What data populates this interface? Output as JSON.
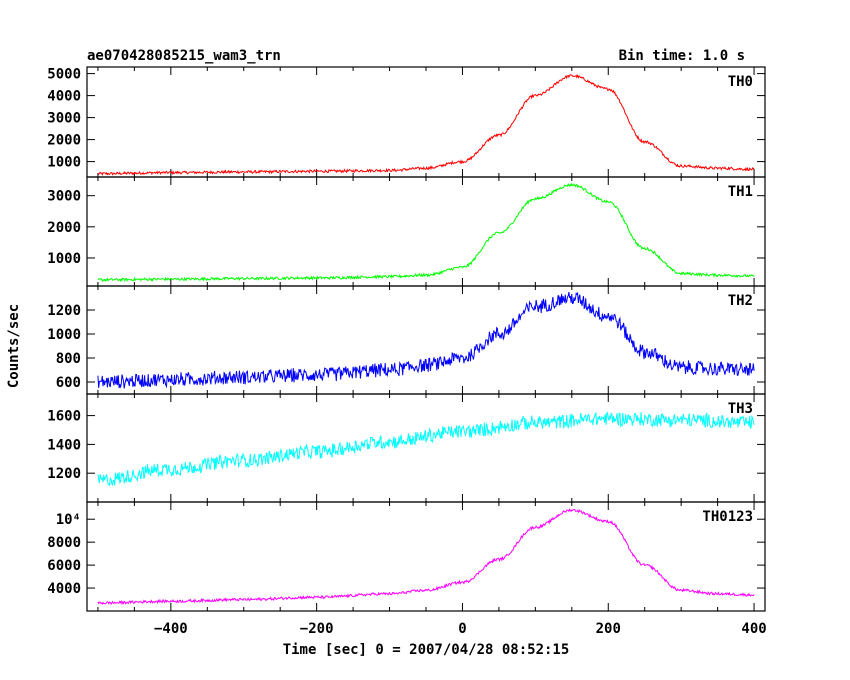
{
  "header": {
    "title": "ae070428085215_wam3_trn",
    "bin_time": "Bin time: 1.0 s"
  },
  "chart_data": {
    "type": "line",
    "title": "ae070428085215_wam3_trn",
    "xlabel": "Time [sec] 0 = 2007/04/28 08:52:15",
    "ylabel": "Counts/sec",
    "xlim": [
      -515,
      415
    ],
    "x_ticks": [
      -400,
      -200,
      0,
      200,
      400
    ],
    "x_tick_labels": [
      "−400",
      "−200",
      "0",
      "200",
      "400"
    ],
    "panels": [
      {
        "name": "TH0",
        "color": "#ff0000",
        "ylim": [
          300,
          5300
        ],
        "y_ticks": [
          1000,
          2000,
          3000,
          4000,
          5000
        ],
        "y_tick_labels": [
          "1000",
          "2000",
          "3000",
          "4000",
          "5000"
        ],
        "x": [
          -500,
          -400,
          -300,
          -200,
          -100,
          -50,
          0,
          50,
          100,
          150,
          200,
          250,
          300,
          350,
          400
        ],
        "y": [
          450,
          500,
          530,
          560,
          600,
          700,
          1000,
          2200,
          4000,
          4900,
          4300,
          1900,
          800,
          700,
          650
        ]
      },
      {
        "name": "TH1",
        "color": "#00ff00",
        "ylim": [
          100,
          3600
        ],
        "y_ticks": [
          1000,
          2000,
          3000
        ],
        "y_tick_labels": [
          "1000",
          "2000",
          "3000"
        ],
        "x": [
          -500,
          -400,
          -300,
          -200,
          -100,
          -50,
          0,
          50,
          100,
          150,
          200,
          250,
          300,
          350,
          400
        ],
        "y": [
          300,
          320,
          340,
          360,
          400,
          450,
          700,
          1800,
          2900,
          3350,
          2800,
          1300,
          500,
          450,
          420
        ]
      },
      {
        "name": "TH2",
        "color": "#0000ff",
        "ylim": [
          500,
          1400
        ],
        "y_ticks": [
          600,
          800,
          1000,
          1200
        ],
        "y_tick_labels": [
          "600",
          "800",
          "1000",
          "1200"
        ],
        "x": [
          -500,
          -400,
          -300,
          -200,
          -100,
          -50,
          0,
          50,
          100,
          150,
          200,
          250,
          300,
          350,
          400
        ],
        "y": [
          600,
          620,
          640,
          660,
          700,
          740,
          800,
          1000,
          1230,
          1300,
          1150,
          850,
          720,
          710,
          700
        ]
      },
      {
        "name": "TH3",
        "color": "#00ffff",
        "ylim": [
          1000,
          1750
        ],
        "y_ticks": [
          1200,
          1400,
          1600
        ],
        "y_tick_labels": [
          "1200",
          "1400",
          "1600"
        ],
        "x": [
          -500,
          -400,
          -300,
          -200,
          -100,
          0,
          100,
          200,
          300,
          400
        ],
        "y": [
          1150,
          1230,
          1290,
          1350,
          1420,
          1490,
          1550,
          1580,
          1570,
          1550
        ]
      },
      {
        "name": "TH0123",
        "color": "#ff00ff",
        "ylim": [
          2000,
          11500
        ],
        "y_ticks": [
          4000,
          6000,
          8000,
          10000
        ],
        "y_tick_labels": [
          "4000",
          "6000",
          "8000",
          "10⁴"
        ],
        "x": [
          -500,
          -400,
          -300,
          -200,
          -100,
          -50,
          0,
          50,
          100,
          150,
          200,
          250,
          300,
          350,
          400
        ],
        "y": [
          2700,
          2850,
          3000,
          3200,
          3500,
          3800,
          4500,
          6500,
          9300,
          10800,
          9800,
          6000,
          3800,
          3500,
          3400
        ]
      }
    ],
    "grid": false,
    "legend": "none"
  }
}
